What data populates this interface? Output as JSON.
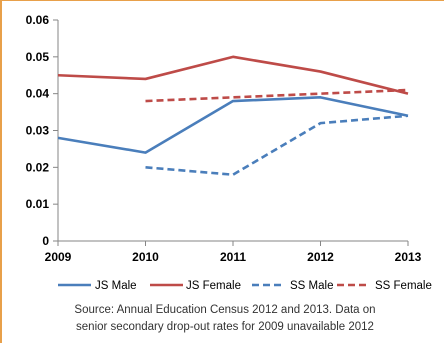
{
  "chart_data": {
    "type": "line",
    "x": [
      "2009",
      "2010",
      "2011",
      "2012",
      "2013"
    ],
    "y_ticks": [
      "0",
      "0.01",
      "0.02",
      "0.03",
      "0.04",
      "0.05",
      "0.06"
    ],
    "ylim": [
      0,
      0.06
    ],
    "grid": false,
    "legend_position": "bottom",
    "series": [
      {
        "name": "JS Male",
        "color": "#4a7ebb",
        "dash": "solid",
        "values": [
          0.028,
          0.024,
          0.038,
          0.039,
          0.034
        ]
      },
      {
        "name": "JS Female",
        "color": "#be4b48",
        "dash": "solid",
        "values": [
          0.045,
          0.044,
          0.05,
          0.046,
          0.04
        ]
      },
      {
        "name": "SS Male",
        "color": "#4a7ebb",
        "dash": "dashed",
        "values": [
          null,
          0.02,
          0.018,
          0.032,
          0.034
        ]
      },
      {
        "name": "SS Female",
        "color": "#be4b48",
        "dash": "dashed",
        "values": [
          null,
          0.038,
          0.039,
          0.04,
          0.041
        ]
      }
    ]
  },
  "source_note": {
    "line1": "Source: Annual Education Census 2012 and 2013. Data on",
    "line2": "senior secondary drop-out rates for 2009 unavailable 2012"
  }
}
